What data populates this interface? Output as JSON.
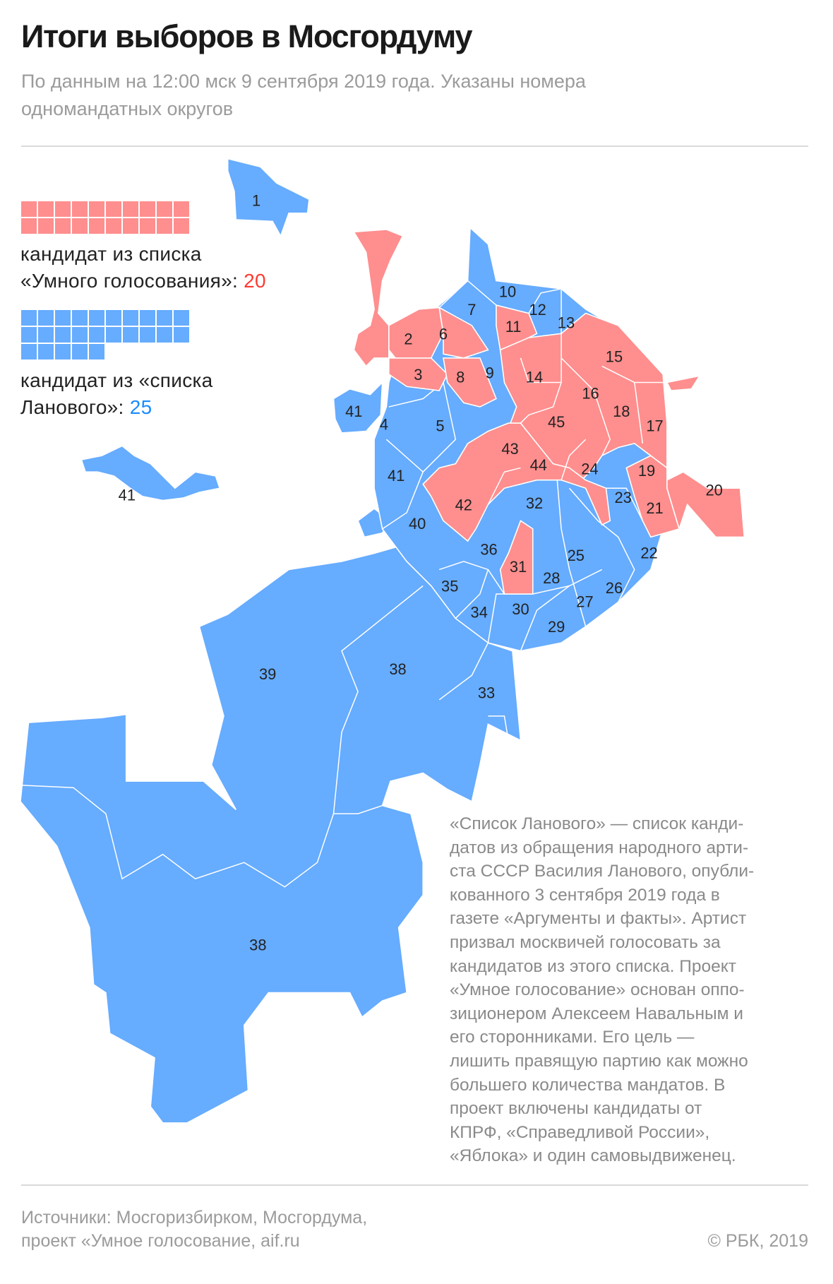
{
  "header": {
    "title": "Итоги выборов в Мосгордуму",
    "subtitle_lines": [
      "По данным на 12:00 мск 9 сентября 2019 года. Указаны номера",
      "одномандатных округов"
    ]
  },
  "legend": {
    "smart_voting": {
      "line1": "кандидат из списка",
      "line2": "«Умного голосования»: ",
      "count": "20",
      "count_value": 20,
      "color": "#ff8e8e",
      "count_color": "#ff3b30"
    },
    "lanovoy": {
      "line1": "кандидат из «списка",
      "line2": "Ланового»: ",
      "count": "25",
      "count_value": 25,
      "color": "#66acff",
      "count_color": "#1a8cff"
    }
  },
  "map": {
    "labels": {
      "d1": "1",
      "d2": "2",
      "d3": "3",
      "d4": "4",
      "d5": "5",
      "d6": "6",
      "d7": "7",
      "d8": "8",
      "d9": "9",
      "d10": "10",
      "d11": "11",
      "d12": "12",
      "d13": "13",
      "d14": "14",
      "d15": "15",
      "d16": "16",
      "d17": "17",
      "d18": "18",
      "d19": "19",
      "d20": "20",
      "d21": "21",
      "d22": "22",
      "d23": "23",
      "d24": "24",
      "d25": "25",
      "d26": "26",
      "d27": "27",
      "d28": "28",
      "d29": "29",
      "d30": "30",
      "d31": "31",
      "d32": "32",
      "d33": "33",
      "d34": "34",
      "d35": "35",
      "d36": "36",
      "d38": "38",
      "d39": "39",
      "d40": "40",
      "d41": "41",
      "d42": "42",
      "d43": "43",
      "d44": "44",
      "d45": "45"
    }
  },
  "note_lines": [
    "«Список Ланового» —  список канди-",
    "датов из обращения народного арти-",
    "ста СССР Василия Ланового, опубли-",
    "кованного 3 сентября 2019 года в",
    "газете «Аргументы и факты». Артист",
    "призвал москвичей голосовать за",
    "кандидатов из этого списка. Проект",
    "«Умное голосование» основан оппо-",
    "зиционером Алексеем Навальным и",
    "его сторонниками. Его цель —",
    "лишить правящую партию как можно",
    "большего количества мандатов. В",
    "проект включены кандидаты от",
    "КПРФ, «Справедливой России»,",
    "«Яблока» и один самовыдвиженец."
  ],
  "footer": {
    "sources_line1": "Источники: Мосгоризбирком, Мосгордума,",
    "sources_line2": "проект «Умное голосование, aif.ru",
    "copyright": "© РБК, 2019"
  }
}
